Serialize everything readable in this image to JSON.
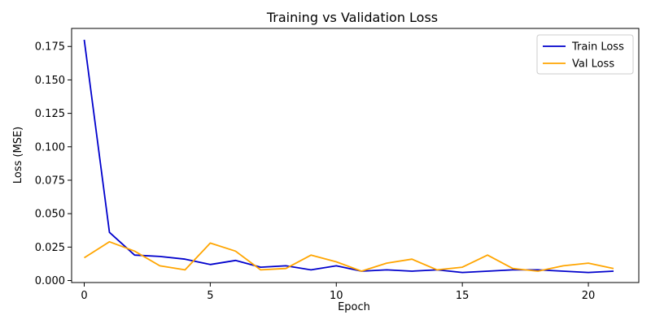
{
  "chart_data": {
    "type": "line",
    "title": "Training vs Validation Loss",
    "xlabel": "Epoch",
    "ylabel": "Loss (MSE)",
    "xlim": [
      -0.5,
      22
    ],
    "ylim": [
      -0.0015,
      0.1885
    ],
    "xticks": [
      0,
      5,
      10,
      15,
      20
    ],
    "yticks": [
      0.0,
      0.025,
      0.05,
      0.075,
      0.1,
      0.125,
      0.15,
      0.175
    ],
    "ytick_labels": [
      "0.000",
      "0.025",
      "0.050",
      "0.075",
      "0.100",
      "0.125",
      "0.150",
      "0.175"
    ],
    "grid": false,
    "legend_position": "top-right",
    "x": [
      0,
      1,
      2,
      3,
      4,
      5,
      6,
      7,
      8,
      9,
      10,
      11,
      12,
      13,
      14,
      15,
      16,
      17,
      18,
      19,
      20,
      21
    ],
    "series": [
      {
        "name": "Train Loss",
        "color": "#0000cc",
        "values": [
          0.18,
          0.036,
          0.019,
          0.018,
          0.016,
          0.012,
          0.015,
          0.01,
          0.011,
          0.008,
          0.011,
          0.007,
          0.008,
          0.007,
          0.008,
          0.006,
          0.007,
          0.008,
          0.008,
          0.007,
          0.006,
          0.007
        ]
      },
      {
        "name": "Val Loss",
        "color": "#ffa500",
        "values": [
          0.017,
          0.029,
          0.022,
          0.011,
          0.008,
          0.028,
          0.022,
          0.008,
          0.009,
          0.019,
          0.014,
          0.007,
          0.013,
          0.016,
          0.008,
          0.01,
          0.019,
          0.009,
          0.007,
          0.011,
          0.013,
          0.009
        ]
      }
    ]
  }
}
